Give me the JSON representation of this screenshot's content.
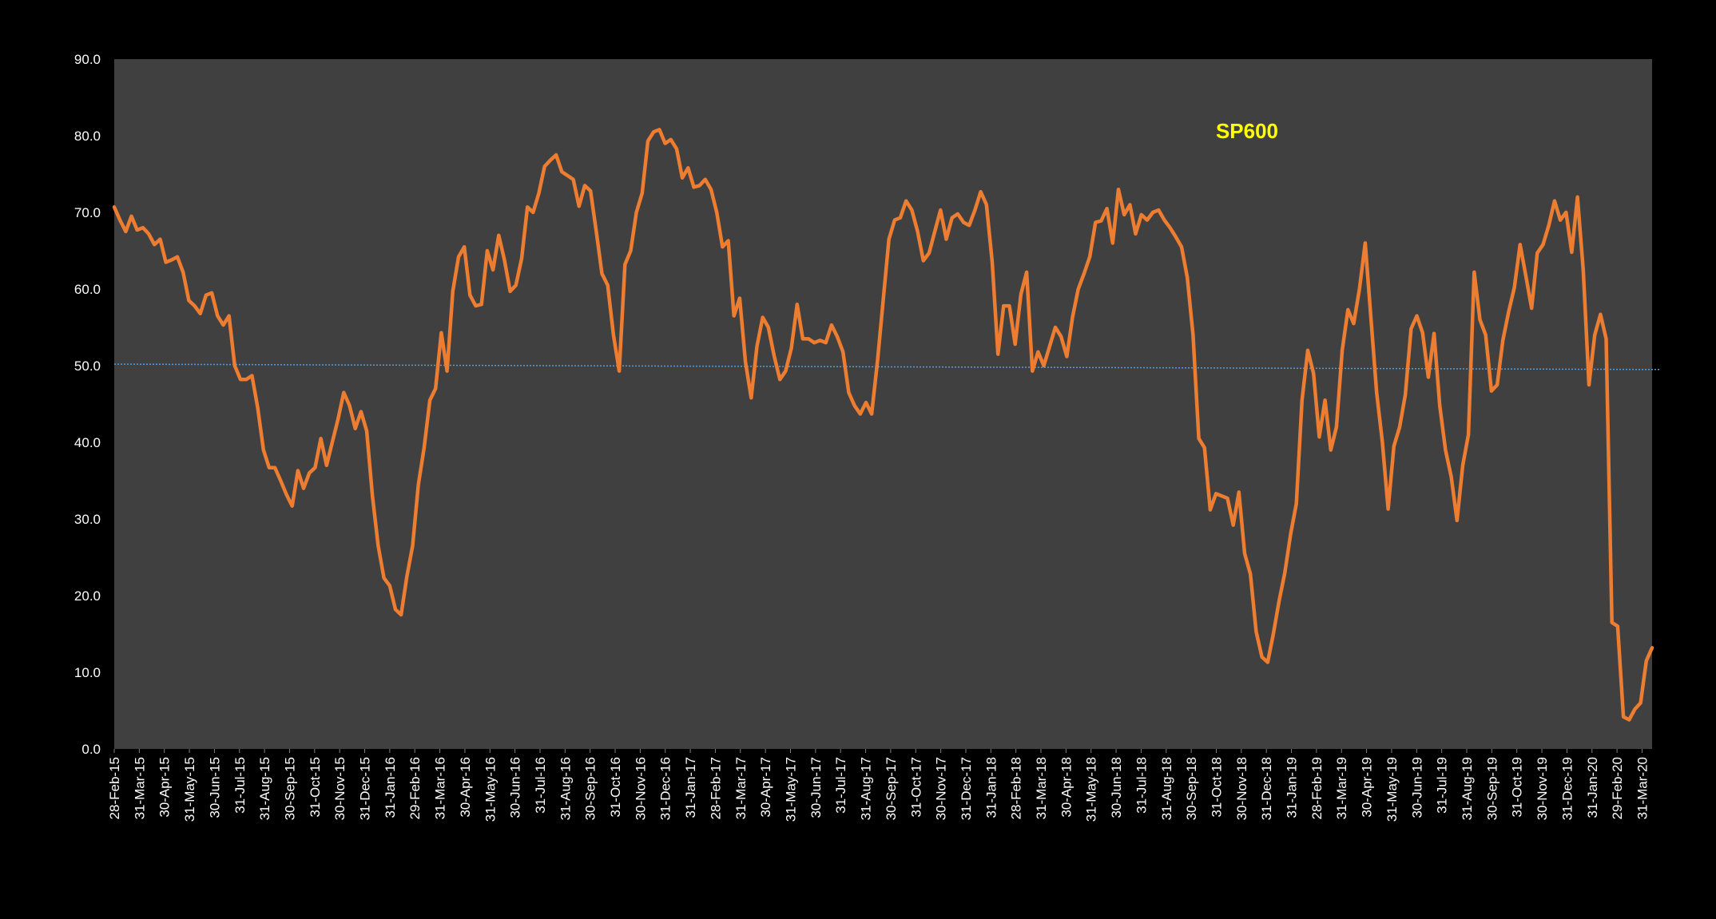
{
  "chart_data": {
    "type": "line",
    "title": "SP600",
    "xlabel": "",
    "ylabel": "",
    "ylim": [
      0,
      90
    ],
    "y_ticks": [
      "0.0",
      "10.0",
      "20.0",
      "30.0",
      "40.0",
      "50.0",
      "60.0",
      "70.0",
      "80.0",
      "90.0"
    ],
    "x_tick_labels": [
      "28-Feb-15",
      "31-Mar-15",
      "30-Apr-15",
      "31-May-15",
      "30-Jun-15",
      "31-Jul-15",
      "31-Aug-15",
      "30-Sep-15",
      "31-Oct-15",
      "30-Nov-15",
      "31-Dec-15",
      "31-Jan-16",
      "29-Feb-16",
      "31-Mar-16",
      "30-Apr-16",
      "31-May-16",
      "30-Jun-16",
      "31-Jul-16",
      "31-Aug-16",
      "30-Sep-16",
      "31-Oct-16",
      "30-Nov-16",
      "31-Dec-16",
      "31-Jan-17",
      "28-Feb-17",
      "31-Mar-17",
      "30-Apr-17",
      "31-May-17",
      "30-Jun-17",
      "31-Jul-17",
      "31-Aug-17",
      "30-Sep-17",
      "31-Oct-17",
      "30-Nov-17",
      "31-Dec-17",
      "31-Jan-18",
      "28-Feb-18",
      "31-Mar-18",
      "30-Apr-18",
      "31-May-18",
      "30-Jun-18",
      "31-Jul-18",
      "31-Aug-18",
      "30-Sep-18",
      "31-Oct-18",
      "30-Nov-18",
      "31-Dec-18",
      "31-Jan-19",
      "28-Feb-19",
      "31-Mar-19",
      "30-Apr-19",
      "31-May-19",
      "30-Jun-19",
      "31-Jul-19",
      "31-Aug-19",
      "30-Sep-19",
      "31-Oct-19",
      "30-Nov-19",
      "31-Dec-19",
      "31-Jan-20",
      "29-Feb-20",
      "31-Mar-20"
    ],
    "series": [
      {
        "color": "#ED7D31",
        "values": [
          70.7,
          69.0,
          67.5,
          69.5,
          67.7,
          68.0,
          67.2,
          65.8,
          66.5,
          63.5,
          63.8,
          64.2,
          62.2,
          58.5,
          57.8,
          56.8,
          59.2,
          59.5,
          56.5,
          55.3,
          56.5,
          50.0,
          48.2,
          48.2,
          48.7,
          44.5,
          39.0,
          36.7,
          36.7,
          35.0,
          33.2,
          31.7,
          36.3,
          34.0,
          36.0,
          36.7,
          40.5,
          37.0,
          40.0,
          43.0,
          46.5,
          44.8,
          41.8,
          44.0,
          41.5,
          33.0,
          26.5,
          22.3,
          21.3,
          18.2,
          17.5,
          22.5,
          26.5,
          34.5,
          39.3,
          45.5,
          47.0,
          54.3,
          49.3,
          59.7,
          64.2,
          65.5,
          59.2,
          57.8,
          58.0,
          65.0,
          62.5,
          67.0,
          63.8,
          59.7,
          60.5,
          64.0,
          70.7,
          70.0,
          72.5,
          76.0,
          76.8,
          77.5,
          75.3,
          74.8,
          74.3,
          70.8,
          73.5,
          72.8,
          67.5,
          62.0,
          60.5,
          54.0,
          49.3,
          63.2,
          65.0,
          70.0,
          72.5,
          79.3,
          80.5,
          80.8,
          79.0,
          79.5,
          78.3,
          74.5,
          75.8,
          73.3,
          73.5,
          74.3,
          73.0,
          70.0,
          65.5,
          66.3,
          56.5,
          58.8,
          50.5,
          45.8,
          52.5,
          56.3,
          55.0,
          51.3,
          48.2,
          49.3,
          52.3,
          58.0,
          53.5,
          53.5,
          53.0,
          53.3,
          53.0,
          55.3,
          53.8,
          51.8,
          46.5,
          44.8,
          43.7,
          45.2,
          43.7,
          50.5,
          58.5,
          66.5,
          69.0,
          69.3,
          71.5,
          70.3,
          67.5,
          63.7,
          64.7,
          67.5,
          70.3,
          66.5,
          69.3,
          69.8,
          68.7,
          68.3,
          70.3,
          72.7,
          71.0,
          63.5,
          51.5,
          57.8,
          57.8,
          52.8,
          59.3,
          62.2,
          49.3,
          51.8,
          50.0,
          52.5,
          55.0,
          53.8,
          51.2,
          56.3,
          60.0,
          62.0,
          64.2,
          68.7,
          68.9,
          70.5,
          66.0,
          73.0,
          69.7,
          71.0,
          67.2,
          69.7,
          69.0,
          70.0,
          70.3,
          69.0,
          68.0,
          66.8,
          65.5,
          61.5,
          54.0,
          40.5,
          39.3,
          31.2,
          33.3,
          33.0,
          32.7,
          29.2,
          33.5,
          25.5,
          22.8,
          15.3,
          12.0,
          11.3,
          15.0,
          19.3,
          23.0,
          28.0,
          32.0,
          45.5,
          52.0,
          49.0,
          40.7,
          45.5,
          39.0,
          42.0,
          52.0,
          57.3,
          55.5,
          60.0,
          66.0,
          56.3,
          46.5,
          40.0,
          31.3,
          39.5,
          42.0,
          46.2,
          54.8,
          56.5,
          54.3,
          48.5,
          54.2,
          44.8,
          39.0,
          35.5,
          29.8,
          37.0,
          41.0,
          62.2,
          56.0,
          54.0,
          46.7,
          47.5,
          53.3,
          57.0,
          60.2,
          65.8,
          61.7,
          57.5,
          64.7,
          65.8,
          68.3,
          71.5,
          69.0,
          70.0,
          64.8,
          72.0,
          62.5,
          47.5,
          54.0,
          56.7,
          53.5,
          16.5,
          16.0,
          4.2,
          3.8,
          5.2,
          6.0,
          11.5,
          13.2
        ]
      },
      {
        "color": "#5B9BD5",
        "values": [
          50.2,
          49.5
        ]
      }
    ]
  }
}
